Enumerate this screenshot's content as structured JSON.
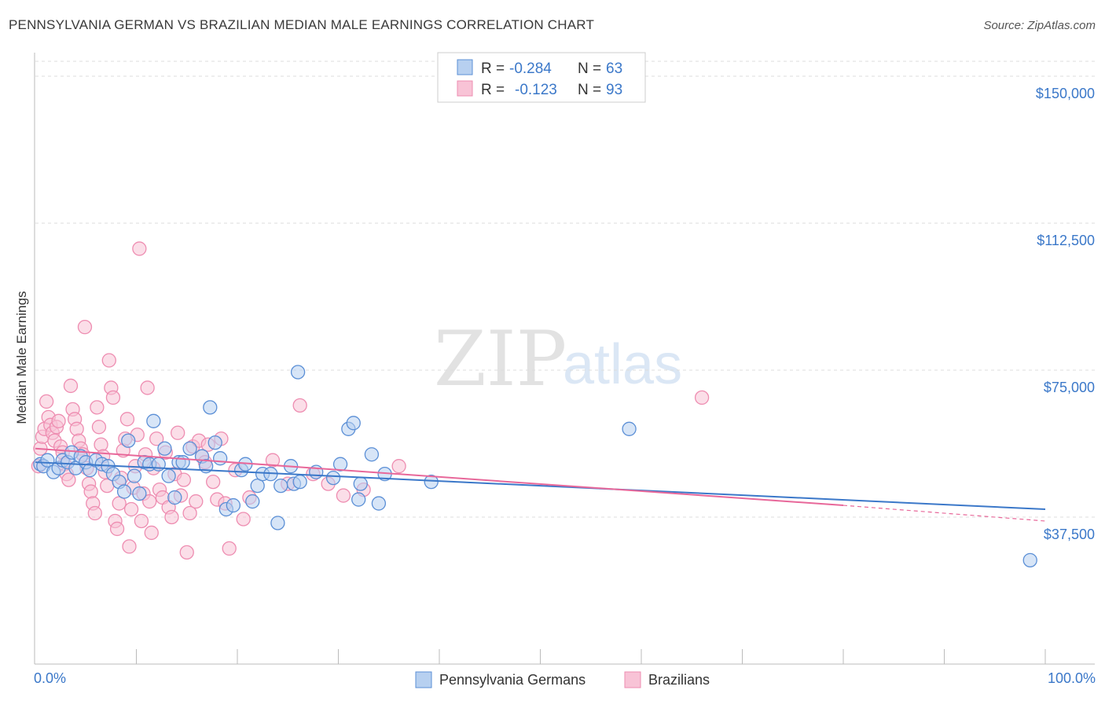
{
  "title": "PENNSYLVANIA GERMAN VS BRAZILIAN MEDIAN MALE EARNINGS CORRELATION CHART",
  "source": "Source: ZipAtlas.com",
  "watermark": {
    "zip": "ZIP",
    "atlas": "atlas"
  },
  "colors": {
    "blue": "#3b78c9",
    "blue_fill": "#b7d0f0",
    "blue_stroke": "#5b8fd6",
    "pink": "#e8689a",
    "pink_fill": "#f8c3d6",
    "pink_stroke": "#ee8db1",
    "grid": "#dcdcdc"
  },
  "legend": {
    "rows": [
      {
        "r_label": "R =",
        "r_value": "-0.284",
        "n_label": "N =",
        "n_value": "63"
      },
      {
        "r_label": "R =",
        "r_value": "-0.123",
        "n_label": "N =",
        "n_value": "93"
      }
    ]
  },
  "chart_data": {
    "type": "scatter",
    "title": "PENNSYLVANIA GERMAN VS BRAZILIAN MEDIAN MALE EARNINGS CORRELATION CHART",
    "ylabel": "Median Male Earnings",
    "xlabel": "",
    "x_tick_labels": {
      "left": "0.0%",
      "right": "100.0%"
    },
    "xlim": [
      0,
      100
    ],
    "ylim": [
      0,
      155000
    ],
    "y_ticks": [
      {
        "value": 37500,
        "label": "$37,500"
      },
      {
        "value": 75000,
        "label": "$75,000"
      },
      {
        "value": 112500,
        "label": "$112,500"
      },
      {
        "value": 150000,
        "label": "$150,000"
      }
    ],
    "grid": true,
    "legend_position": "top-center",
    "series": [
      {
        "name": "Pennsylvania Germans",
        "color": "#3b78c9",
        "trend": {
          "x0": 0,
          "y0": 51500,
          "x1": 100,
          "y1": 39500
        },
        "points": [
          [
            0.5,
            51000
          ],
          [
            0.8,
            50500
          ],
          [
            1.2,
            52000
          ],
          [
            1.8,
            49000
          ],
          [
            2.3,
            50000
          ],
          [
            2.7,
            52000
          ],
          [
            3.2,
            51500
          ],
          [
            3.6,
            54000
          ],
          [
            4.0,
            50000
          ],
          [
            4.5,
            53000
          ],
          [
            5.0,
            51500
          ],
          [
            5.4,
            49500
          ],
          [
            6.0,
            52000
          ],
          [
            6.6,
            51000
          ],
          [
            7.2,
            50500
          ],
          [
            7.7,
            48500
          ],
          [
            8.3,
            46500
          ],
          [
            8.8,
            44000
          ],
          [
            9.2,
            57000
          ],
          [
            9.8,
            48000
          ],
          [
            10.3,
            43500
          ],
          [
            10.8,
            51500
          ],
          [
            11.3,
            51000
          ],
          [
            11.7,
            62000
          ],
          [
            12.2,
            51000
          ],
          [
            12.8,
            55000
          ],
          [
            13.2,
            48000
          ],
          [
            13.8,
            42500
          ],
          [
            14.2,
            51500
          ],
          [
            14.6,
            51500
          ],
          [
            15.3,
            55000
          ],
          [
            16.5,
            53000
          ],
          [
            16.9,
            50500
          ],
          [
            17.3,
            65500
          ],
          [
            17.8,
            56500
          ],
          [
            18.3,
            52500
          ],
          [
            18.9,
            39500
          ],
          [
            19.6,
            40500
          ],
          [
            20.4,
            49500
          ],
          [
            20.8,
            51000
          ],
          [
            21.5,
            41500
          ],
          [
            22.0,
            45500
          ],
          [
            22.5,
            48500
          ],
          [
            23.3,
            48500
          ],
          [
            24.0,
            36000
          ],
          [
            24.3,
            45500
          ],
          [
            25.3,
            50500
          ],
          [
            25.6,
            46000
          ],
          [
            26.2,
            46500
          ],
          [
            26.0,
            74500
          ],
          [
            27.8,
            49000
          ],
          [
            29.5,
            47500
          ],
          [
            30.2,
            51000
          ],
          [
            31.0,
            60000
          ],
          [
            31.5,
            61500
          ],
          [
            32.0,
            42000
          ],
          [
            32.2,
            46000
          ],
          [
            33.3,
            53500
          ],
          [
            34.0,
            41000
          ],
          [
            34.6,
            48500
          ],
          [
            39.2,
            46500
          ],
          [
            58.8,
            60000
          ],
          [
            98.5,
            26500
          ]
        ]
      },
      {
        "name": "Brazilians",
        "color": "#e8689a",
        "trend": {
          "x0": 0,
          "y0": 55000,
          "x1": 80,
          "y1": 40500,
          "dash_x1": 100,
          "dash_y1": 36500
        },
        "points": [
          [
            0.3,
            50500
          ],
          [
            0.5,
            55000
          ],
          [
            0.7,
            58000
          ],
          [
            0.9,
            60000
          ],
          [
            1.1,
            67000
          ],
          [
            1.3,
            63000
          ],
          [
            1.5,
            61000
          ],
          [
            1.7,
            59000
          ],
          [
            1.9,
            57000
          ],
          [
            2.1,
            60500
          ],
          [
            2.3,
            62000
          ],
          [
            2.5,
            55500
          ],
          [
            2.7,
            54000
          ],
          [
            2.9,
            51000
          ],
          [
            3.1,
            48500
          ],
          [
            3.3,
            47000
          ],
          [
            3.5,
            71000
          ],
          [
            3.7,
            65000
          ],
          [
            3.9,
            62500
          ],
          [
            4.1,
            60000
          ],
          [
            4.3,
            57000
          ],
          [
            4.5,
            55000
          ],
          [
            4.7,
            53500
          ],
          [
            4.9,
            86000
          ],
          [
            5.1,
            50000
          ],
          [
            5.3,
            46000
          ],
          [
            5.5,
            44000
          ],
          [
            5.7,
            41000
          ],
          [
            5.9,
            38500
          ],
          [
            6.1,
            65500
          ],
          [
            6.3,
            60500
          ],
          [
            6.5,
            56000
          ],
          [
            6.7,
            53000
          ],
          [
            6.9,
            49000
          ],
          [
            7.1,
            45500
          ],
          [
            7.3,
            77500
          ],
          [
            7.5,
            70500
          ],
          [
            7.7,
            68000
          ],
          [
            7.9,
            36500
          ],
          [
            8.1,
            34500
          ],
          [
            8.3,
            41000
          ],
          [
            8.5,
            47500
          ],
          [
            8.7,
            54500
          ],
          [
            8.9,
            57500
          ],
          [
            9.1,
            62500
          ],
          [
            9.3,
            30000
          ],
          [
            9.5,
            39500
          ],
          [
            9.7,
            45000
          ],
          [
            9.9,
            50500
          ],
          [
            10.1,
            58500
          ],
          [
            10.3,
            106000
          ],
          [
            10.5,
            36500
          ],
          [
            10.7,
            43500
          ],
          [
            10.9,
            53500
          ],
          [
            11.1,
            70500
          ],
          [
            11.3,
            41500
          ],
          [
            11.5,
            33500
          ],
          [
            11.7,
            50000
          ],
          [
            12.0,
            57500
          ],
          [
            12.3,
            44500
          ],
          [
            12.6,
            42500
          ],
          [
            12.9,
            54000
          ],
          [
            13.2,
            40000
          ],
          [
            13.5,
            37500
          ],
          [
            13.8,
            48500
          ],
          [
            14.1,
            59000
          ],
          [
            14.4,
            43000
          ],
          [
            14.7,
            47000
          ],
          [
            15.0,
            28500
          ],
          [
            15.3,
            38500
          ],
          [
            15.6,
            55500
          ],
          [
            15.9,
            41500
          ],
          [
            16.2,
            57000
          ],
          [
            16.5,
            53000
          ],
          [
            16.8,
            51500
          ],
          [
            17.1,
            56000
          ],
          [
            17.6,
            46500
          ],
          [
            18.0,
            42000
          ],
          [
            18.4,
            57500
          ],
          [
            18.8,
            41000
          ],
          [
            19.2,
            29500
          ],
          [
            19.8,
            49500
          ],
          [
            20.6,
            37000
          ],
          [
            21.2,
            42500
          ],
          [
            23.5,
            52000
          ],
          [
            25.0,
            46000
          ],
          [
            26.2,
            66000
          ],
          [
            27.5,
            48500
          ],
          [
            29.0,
            46000
          ],
          [
            30.5,
            43000
          ],
          [
            32.5,
            44500
          ],
          [
            36.0,
            50500
          ],
          [
            66.0,
            68000
          ]
        ]
      }
    ]
  }
}
